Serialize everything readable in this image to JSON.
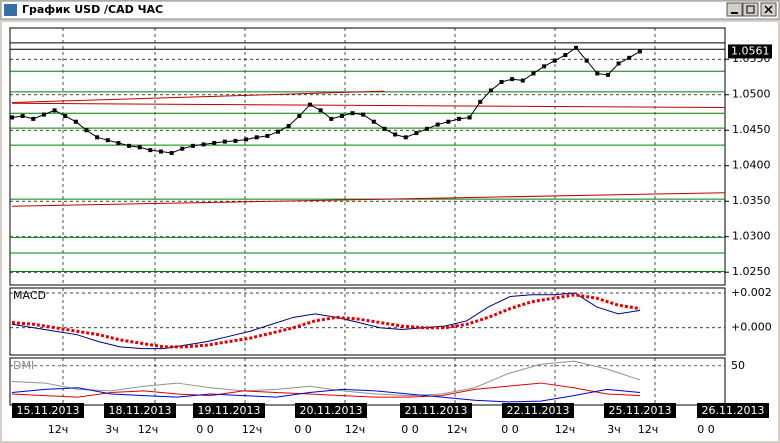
{
  "window_title": "График USD /CAD ЧАС",
  "chart_data": [
    {
      "type": "price",
      "xlim": [
        0,
        67
      ],
      "ylim": [
        1.0232,
        1.0594
      ],
      "yticks": [
        {
          "value": 1.055,
          "label": "1.0550"
        },
        {
          "value": 1.05,
          "label": "1.0500"
        },
        {
          "value": 1.045,
          "label": "1.0450"
        },
        {
          "value": 1.04,
          "label": "1.0400"
        },
        {
          "value": 1.035,
          "label": "1.0350"
        },
        {
          "value": 1.03,
          "label": "1.0300"
        },
        {
          "value": 1.025,
          "label": "1.0250"
        }
      ],
      "last_price": 1.0561,
      "color": "#000000",
      "values": [
        1.0468,
        1.047,
        1.0466,
        1.0472,
        1.0478,
        1.047,
        1.0462,
        1.045,
        1.044,
        1.0436,
        1.0432,
        1.0428,
        1.0426,
        1.0422,
        1.042,
        1.0418,
        1.0424,
        1.0428,
        1.043,
        1.0432,
        1.0434,
        1.0435,
        1.0437,
        1.044,
        1.0442,
        1.0448,
        1.0456,
        1.047,
        1.0486,
        1.0478,
        1.0466,
        1.047,
        1.0474,
        1.0472,
        1.0462,
        1.0452,
        1.0444,
        1.044,
        1.0446,
        1.0452,
        1.0458,
        1.0462,
        1.0466,
        1.0468,
        1.049,
        1.0506,
        1.0518,
        1.0522,
        1.052,
        1.053,
        1.054,
        1.0548,
        1.0556,
        1.0566,
        1.0548,
        1.053,
        1.0528,
        1.0544,
        1.0552,
        1.0561
      ],
      "levels": {
        "color": "#008000",
        "values": [
          1.0533,
          1.0504,
          1.0474,
          1.0453,
          1.0429,
          1.0353,
          1.0299,
          1.0277,
          1.0251
        ]
      },
      "black_levels": {
        "color": "#000000",
        "values": [
          1.0573,
          1.0564
        ]
      },
      "trend_lines": {
        "color": "#c00000",
        "lines": [
          {
            "x": [
              0,
              35
            ],
            "values": [
              1.0489,
              1.0505
            ]
          },
          {
            "x": [
              0,
              67
            ],
            "values": [
              1.0488,
              1.0482
            ]
          },
          {
            "x": [
              0,
              67
            ],
            "values": [
              1.0343,
              1.0362
            ]
          }
        ]
      },
      "date_labels": [
        "15.11.2013",
        "18.11.2013",
        "19.11.2013",
        "20.11.2013",
        "21.11.2013",
        "22.11.2013",
        "25.11.2013",
        "26.11.2013"
      ],
      "hour_labels": [
        "12ч",
        "3ч",
        "12ч",
        "0 0",
        "12ч",
        "0 0",
        "12ч",
        "0 0",
        "12ч",
        "0 0",
        "12ч",
        "3ч",
        "12ч",
        "0 0"
      ]
    },
    {
      "type": "line",
      "title": "MACD",
      "ylim": [
        -0.00157,
        0.00229
      ],
      "yticks": [
        {
          "value": 0.002,
          "label": "+0.002"
        },
        {
          "value": 0,
          "label": "+0.000"
        }
      ],
      "series": [
        {
          "color": "#000080",
          "values": [
            0.0002,
            0,
            -0.0002,
            -0.0004,
            -0.0008,
            -0.0011,
            -0.0012,
            -0.0012,
            -0.001,
            -0.0008,
            -0.0005,
            -0.0002,
            0.0002,
            0.0006,
            0.0008,
            0.0006,
            0.0003,
            0,
            -0.0001,
            0,
            0.0001,
            0.0004,
            0.0012,
            0.0018,
            0.0019,
            0.0019,
            0.002,
            0.0012,
            0.0008,
            0.001
          ]
        },
        {
          "color": "#dd0000",
          "dashed": true,
          "values": [
            0.0003,
            0.0002,
            0,
            -0.0002,
            -0.0004,
            -0.0007,
            -0.0009,
            -0.0011,
            -0.0011,
            -0.001,
            -0.0008,
            -0.0006,
            -0.0003,
            0,
            0.0004,
            0.0006,
            0.0005,
            0.0003,
            0.0001,
            0,
            0,
            0.0002,
            0.0006,
            0.0011,
            0.0015,
            0.0017,
            0.0019,
            0.0017,
            0.0013,
            0.0011
          ]
        }
      ]
    },
    {
      "type": "line",
      "title": "DMI",
      "ylim": [
        0,
        60
      ],
      "yticks": [
        50
      ],
      "series": [
        {
          "color": "#909090",
          "values": [
            30,
            28,
            20,
            18,
            24,
            28,
            22,
            18,
            20,
            24,
            18,
            14,
            12,
            14,
            22,
            40,
            52,
            56,
            46,
            32
          ]
        },
        {
          "color": "#e00000",
          "values": [
            14,
            12,
            10,
            16,
            18,
            14,
            12,
            18,
            16,
            14,
            12,
            10,
            10,
            12,
            20,
            24,
            28,
            22,
            14,
            12
          ]
        },
        {
          "color": "#0000e0",
          "values": [
            16,
            20,
            22,
            14,
            12,
            10,
            14,
            12,
            10,
            16,
            20,
            18,
            14,
            10,
            6,
            4,
            5,
            12,
            20,
            16
          ]
        }
      ]
    }
  ]
}
